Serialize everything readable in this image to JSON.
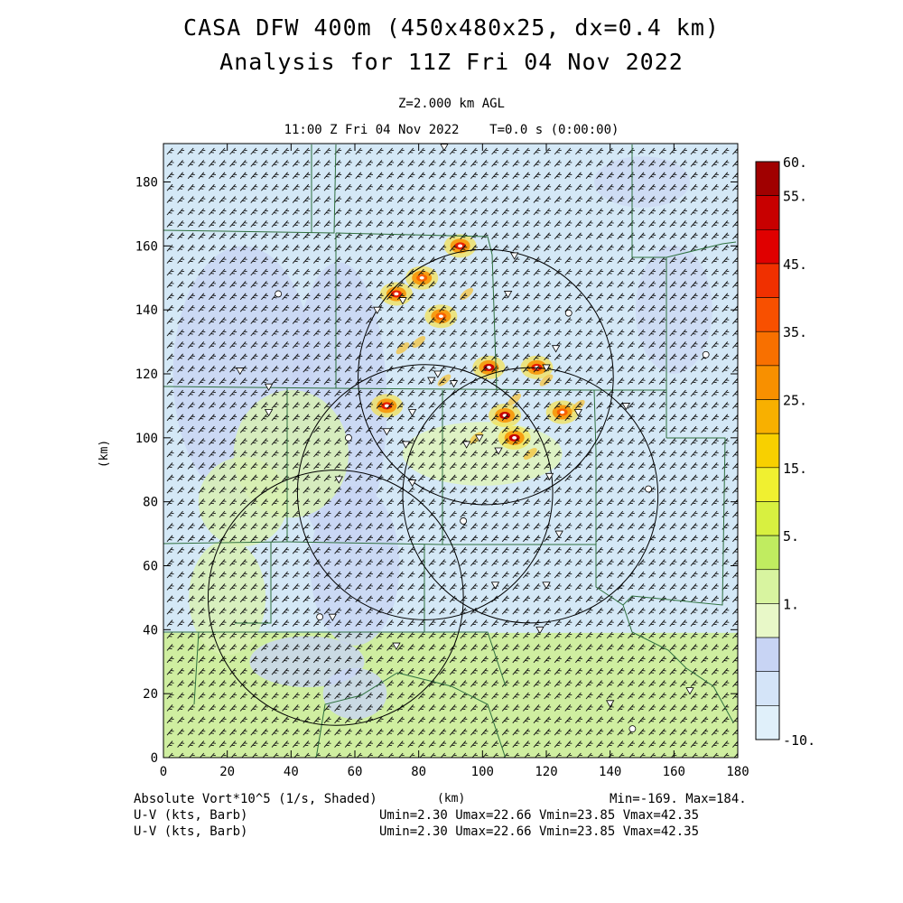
{
  "title": {
    "line1": "CASA DFW 400m (450x480x25, dx=0.4 km)",
    "line2": "Analysis for 11Z Fri 04 Nov 2022"
  },
  "subtitle": {
    "level": "Z=2.000 km AGL",
    "time": "11:00 Z Fri 04 Nov 2022    T=0.0 s (0:00:00)"
  },
  "axes": {
    "xlabel": "(km)",
    "ylabel": "(km)",
    "xlim": [
      0,
      180
    ],
    "ylim": [
      0,
      192
    ],
    "xticks": [
      "0",
      "20",
      "40",
      "60",
      "80",
      "100",
      "120",
      "140",
      "160",
      "180"
    ],
    "yticks": [
      "0",
      "20",
      "40",
      "60",
      "80",
      "100",
      "120",
      "140",
      "160",
      "180"
    ]
  },
  "colorbar": {
    "labels": [
      "60.",
      "55.",
      "45.",
      "35.",
      "25.",
      "15.",
      "5.",
      "1.",
      "-10."
    ],
    "colors": [
      "#a00000",
      "#c80000",
      "#e00000",
      "#f03000",
      "#f85000",
      "#f87000",
      "#f89000",
      "#f8b000",
      "#f8d000",
      "#f0f030",
      "#d8f040",
      "#c0ec60",
      "#d8f4a0",
      "#e8f8c8",
      "#c8d4f4",
      "#d4e4f8",
      "#e0f0fa"
    ]
  },
  "footer": {
    "field1": "Absolute Vort*10^5 (1/s, Shaded)",
    "field2": "U-V (kts, Barb)",
    "field3": "U-V (kts, Barb)",
    "units": "(km)",
    "minmax": "Min=-169. Max=184.",
    "uv1": "Umin=2.30 Umax=22.66 Vmin=23.85 Vmax=42.35",
    "uv2": "Umin=2.30 Umax=22.66 Vmin=23.85 Vmax=42.35"
  },
  "chart_data": {
    "type": "heatmap",
    "title": "CASA DFW 400m (450x480x25, dx=0.4 km)",
    "field": "Absolute Vort*10^5 (1/s, Shaded)",
    "vector_field": "U-V (kts, Barb)",
    "x_range_km": [
      0,
      180
    ],
    "y_range_km": [
      0,
      192
    ],
    "value_min": -169,
    "value_max": 184,
    "u_range_kts": [
      2.3,
      22.66
    ],
    "v_range_kts": [
      23.85,
      42.35
    ],
    "contour_levels": [
      -10,
      1,
      5,
      15,
      25,
      35,
      45,
      55,
      60
    ],
    "radar_range_rings": [
      {
        "cx": 101,
        "cy": 119,
        "r": 40
      },
      {
        "cx": 82,
        "cy": 83,
        "r": 40
      },
      {
        "cx": 115,
        "cy": 82,
        "r": 40
      },
      {
        "cx": 54,
        "cy": 50,
        "r": 40
      }
    ],
    "high_vorticity_regions": [
      {
        "x": 70,
        "y": 110,
        "value": 45
      },
      {
        "x": 73,
        "y": 145,
        "value": 45
      },
      {
        "x": 81,
        "y": 150,
        "value": 40
      },
      {
        "x": 93,
        "y": 160,
        "value": 50
      },
      {
        "x": 87,
        "y": 138,
        "value": 35
      },
      {
        "x": 102,
        "y": 122,
        "value": 55
      },
      {
        "x": 107,
        "y": 107,
        "value": 60
      },
      {
        "x": 110,
        "y": 100,
        "value": 55
      },
      {
        "x": 117,
        "y": 122,
        "value": 45
      },
      {
        "x": 125,
        "y": 108,
        "value": 35
      }
    ]
  }
}
